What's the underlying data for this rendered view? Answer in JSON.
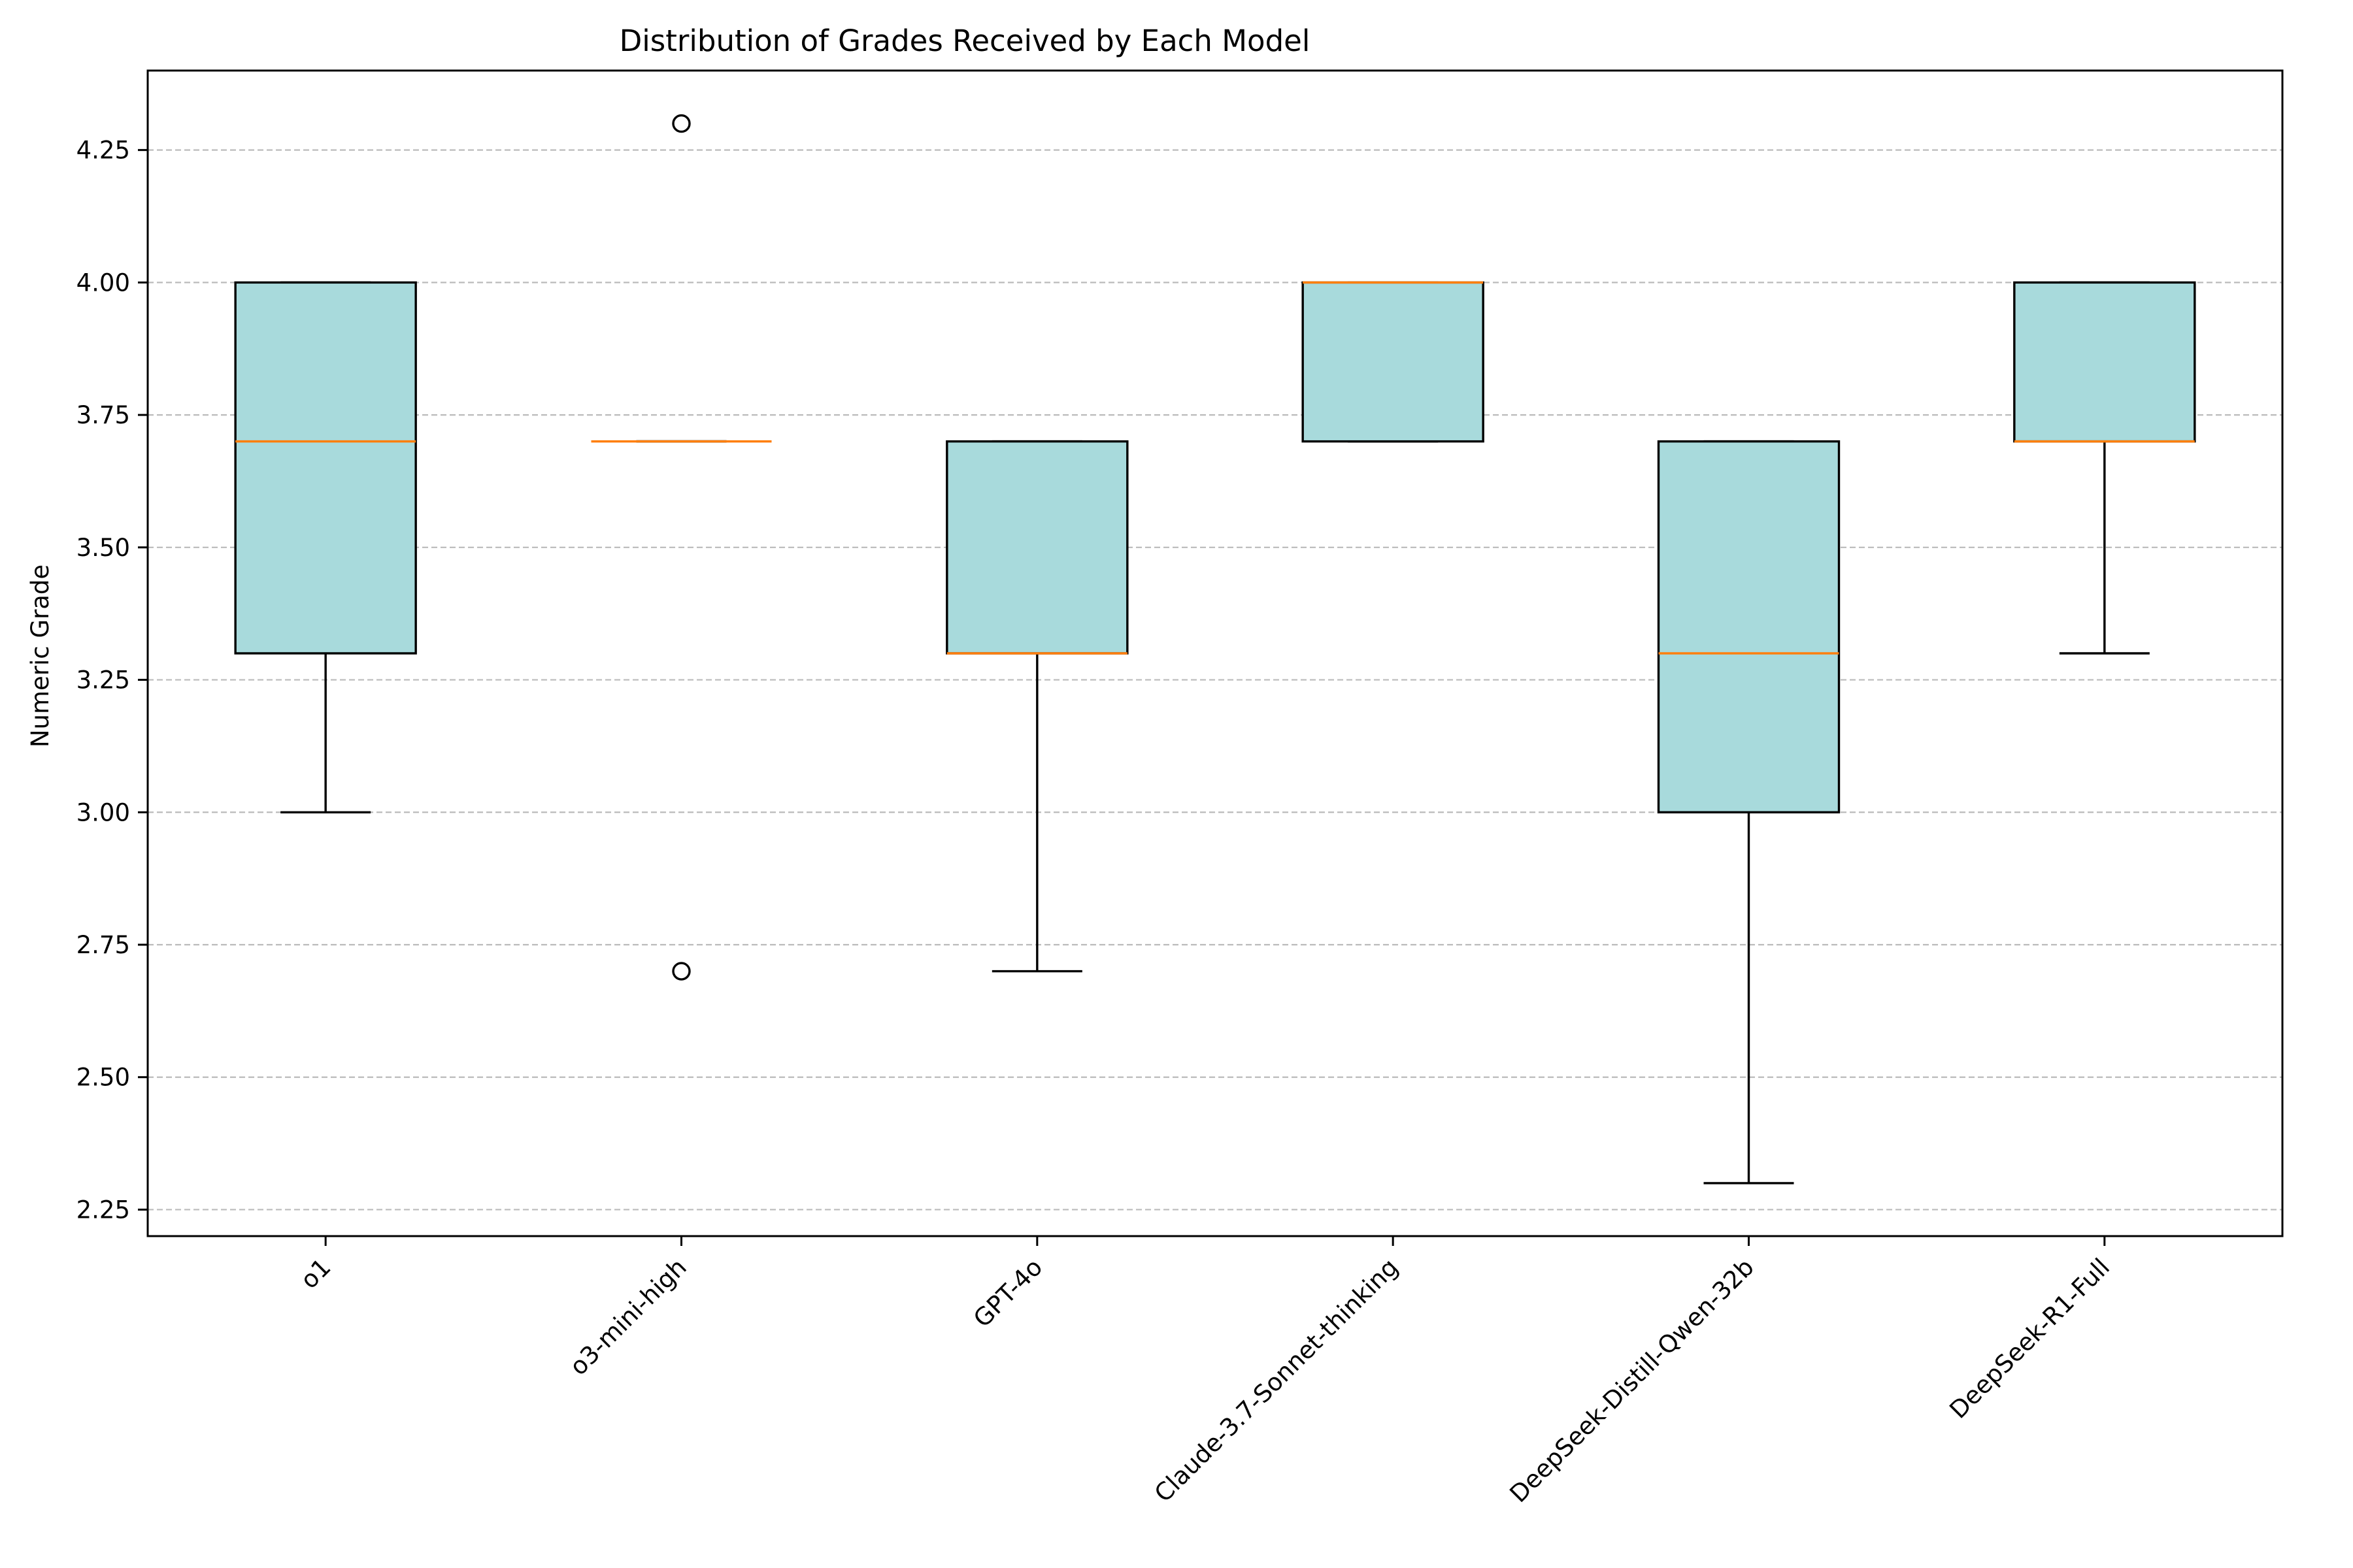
{
  "colors": {
    "box_fill": "#a8dadc",
    "median": "#ff7f0e",
    "outline": "#000000",
    "grid": "#bbbbbb"
  },
  "chart_data": {
    "type": "box",
    "title": "Distribution of Grades Received by Each Model",
    "xlabel": "",
    "ylabel": "Numeric Grade",
    "ylim": [
      2.2,
      4.4
    ],
    "yticks": [
      2.25,
      2.5,
      2.75,
      3.0,
      3.25,
      3.5,
      3.75,
      4.0,
      4.25
    ],
    "ytick_labels": [
      "2.25",
      "2.50",
      "2.75",
      "3.00",
      "3.25",
      "3.50",
      "3.75",
      "4.00",
      "4.25"
    ],
    "grid": "horizontal dashed",
    "categories": [
      "o1",
      "o3-mini-high",
      "GPT-4o",
      "Claude-3.7-Sonnet-thinking",
      "DeepSeek-Distill-Qwen-32b",
      "DeepSeek-R1-Full"
    ],
    "series": [
      {
        "whisker_low": 3.0,
        "q1": 3.3,
        "median": 3.7,
        "q3": 4.0,
        "whisker_high": 4.0,
        "outliers": []
      },
      {
        "whisker_low": 3.7,
        "q1": 3.7,
        "median": 3.7,
        "q3": 3.7,
        "whisker_high": 3.7,
        "outliers": [
          2.7,
          4.3
        ]
      },
      {
        "whisker_low": 2.7,
        "q1": 3.3,
        "median": 3.3,
        "q3": 3.7,
        "whisker_high": 3.7,
        "outliers": []
      },
      {
        "whisker_low": 3.7,
        "q1": 3.7,
        "median": 4.0,
        "q3": 4.0,
        "whisker_high": 4.0,
        "outliers": []
      },
      {
        "whisker_low": 2.3,
        "q1": 3.0,
        "median": 3.3,
        "q3": 3.7,
        "whisker_high": 3.7,
        "outliers": []
      },
      {
        "whisker_low": 3.3,
        "q1": 3.7,
        "median": 3.7,
        "q3": 4.0,
        "whisker_high": 4.0,
        "outliers": []
      }
    ]
  }
}
